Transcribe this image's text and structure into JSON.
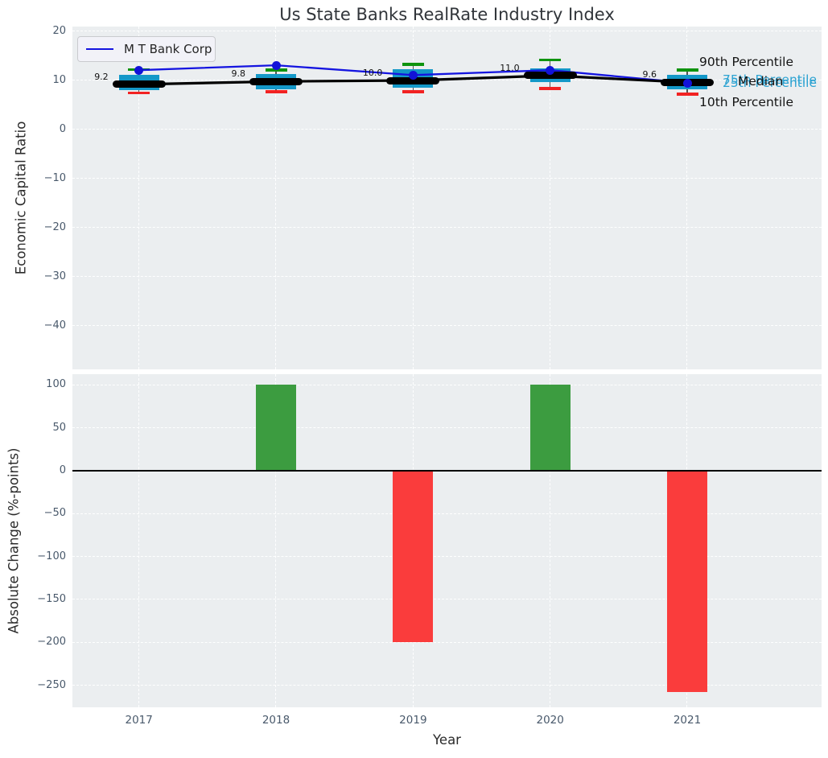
{
  "figure": {
    "title": "Us State Banks RealRate Industry Index"
  },
  "legend": {
    "label": "M T Bank Corp",
    "line_color": "#1414e0"
  },
  "annotations": {
    "p90": "90th Percentile",
    "p75": "75th Percentile",
    "median": "Median",
    "p25": "25th Percentile",
    "p10": "10th Percentile"
  },
  "chart_data": [
    {
      "type": "line",
      "subtype": "percentile-box-plot-with-company-line",
      "title": "Us State Banks RealRate Industry Index",
      "xlabel": "Year",
      "ylabel": "Economic Capital Ratio",
      "categories": [
        "2017",
        "2018",
        "2019",
        "2020",
        "2021"
      ],
      "ylim": [
        -50.5,
        21.3
      ],
      "grid": "white-dashed",
      "legend_position": "upper left",
      "yticks": [
        {
          "value": 20,
          "label": "20"
        },
        {
          "value": 10,
          "label": "10"
        },
        {
          "value": 0,
          "label": "0"
        },
        {
          "value": -10,
          "label": "−10"
        },
        {
          "value": -20,
          "label": "−20"
        },
        {
          "value": -30,
          "label": "−30"
        },
        {
          "value": -40,
          "label": "−40"
        }
      ],
      "series": [
        {
          "name": "M T Bank Corp",
          "role": "company-line",
          "color": "#1414e0",
          "values": [
            12.1,
            13.1,
            11.1,
            12.1,
            9.5
          ]
        },
        {
          "name": "90th Percentile",
          "role": "upper-whisker-cap",
          "color": "#0e930e",
          "values": [
            12.2,
            12.1,
            13.3,
            14.2,
            12.1
          ]
        },
        {
          "name": "75th Percentile",
          "role": "box-top",
          "color": "#1498c8",
          "values": [
            11.2,
            11.3,
            12.3,
            12.5,
            11.1
          ]
        },
        {
          "name": "Median",
          "role": "median-line",
          "color": "#000000",
          "values": [
            9.2,
            9.8,
            10.0,
            11.0,
            9.6
          ],
          "value_labels": [
            "9.2",
            "9.8",
            "10.0",
            "11.0",
            "9.6"
          ]
        },
        {
          "name": "25th Percentile",
          "role": "box-bottom",
          "color": "#1498c8",
          "values": [
            8.0,
            8.2,
            8.6,
            9.6,
            8.2
          ]
        },
        {
          "name": "10th Percentile",
          "role": "lower-whisker-cap",
          "color": "#f22222",
          "values": [
            7.5,
            7.7,
            7.7,
            8.4,
            7.2
          ]
        }
      ]
    },
    {
      "type": "bar",
      "ylabel": "Absolute Change (%-points)",
      "categories": [
        "2017",
        "2018",
        "2019",
        "2020",
        "2021"
      ],
      "values": [
        null,
        100,
        -200,
        100,
        -258
      ],
      "ylim": [
        -286,
        116
      ],
      "grid": "white-dashed",
      "zero_line": true,
      "positive_color": "#3c9c40",
      "negative_color": "#fa3c3c",
      "yticks": [
        {
          "value": 100,
          "label": "100"
        },
        {
          "value": 50,
          "label": "50"
        },
        {
          "value": 0,
          "label": "0"
        },
        {
          "value": -50,
          "label": "−50"
        },
        {
          "value": -100,
          "label": "−100"
        },
        {
          "value": -150,
          "label": "−150"
        },
        {
          "value": -200,
          "label": "−200"
        },
        {
          "value": -250,
          "label": "−250"
        }
      ]
    }
  ]
}
